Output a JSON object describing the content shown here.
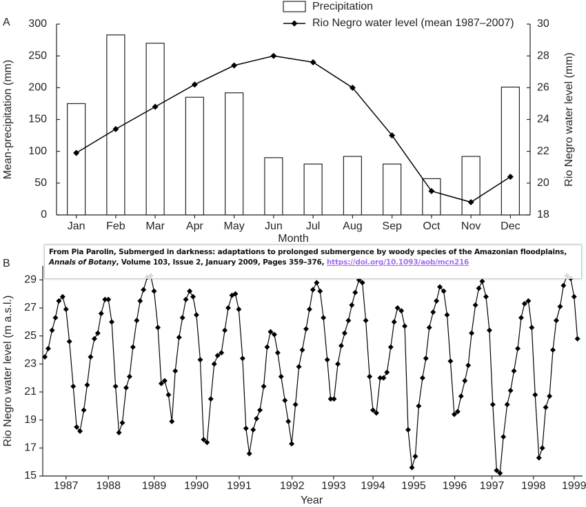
{
  "chart_data": [
    {
      "type": "bar",
      "panel_label": "A",
      "xlabel": "Month",
      "ylabel": "Mean-precipitation (mm)",
      "y2label": "Rio Negro water level (mm)",
      "categories": [
        "Jan",
        "Feb",
        "Mar",
        "Apr",
        "May",
        "Jun",
        "Jul",
        "Aug",
        "Sep",
        "Oct",
        "Nov",
        "Dec"
      ],
      "series": [
        {
          "name": "Precipitation",
          "type": "bar",
          "color": "#ffffff",
          "values": [
            175,
            283,
            270,
            185,
            192,
            90,
            80,
            92,
            80,
            57,
            92,
            201
          ]
        },
        {
          "name": "Rio Negro water level (mean 1987–2007)",
          "type": "line",
          "axis": "y2",
          "color": "#000000",
          "values": [
            21.9,
            23.4,
            24.8,
            26.2,
            27.4,
            28.0,
            27.6,
            26.0,
            23.0,
            19.5,
            18.8,
            20.4
          ]
        }
      ],
      "ylim": [
        0,
        300
      ],
      "yticks": [
        0,
        50,
        100,
        150,
        200,
        250,
        300
      ],
      "y2lim": [
        18,
        30
      ],
      "y2ticks": [
        18,
        20,
        22,
        24,
        26,
        28,
        30
      ]
    },
    {
      "type": "line",
      "panel_label": "B",
      "xlabel": "Year",
      "ylabel": "Rio Negro water level (m a.s.l.)",
      "x": [
        1986.5,
        1986.58,
        1986.67,
        1986.75,
        1986.83,
        1986.92,
        1987,
        1987.08,
        1987.17,
        1987.25,
        1987.33,
        1987.42,
        1987.5,
        1987.58,
        1987.67,
        1987.75,
        1987.83,
        1987.92,
        1988,
        1988.08,
        1988.17,
        1988.25,
        1988.33,
        1988.42,
        1988.5,
        1988.58,
        1988.67,
        1988.75,
        1988.83,
        1988.92,
        1989,
        1989.08,
        1989.17,
        1989.25,
        1989.33,
        1989.42,
        1989.5,
        1989.58,
        1989.67,
        1989.75,
        1989.83,
        1989.92,
        1990,
        1990.08,
        1990.17,
        1990.25,
        1990.33,
        1990.42,
        1990.5,
        1990.58,
        1990.67,
        1990.75,
        1990.83,
        1990.92,
        1991,
        1991.08,
        1991.17,
        1991.25,
        1991.33,
        1991.42,
        1991.5,
        1991.58,
        1991.67,
        1991.75,
        1991.83,
        1991.92,
        1992,
        1992.08,
        1992.17,
        1992.25,
        1992.33,
        1992.42,
        1992.5,
        1992.58,
        1992.67,
        1992.75,
        1992.83,
        1992.92,
        1993,
        1993.08,
        1993.17,
        1993.25,
        1993.33,
        1993.42,
        1993.5,
        1993.58,
        1993.67,
        1993.75,
        1993.83,
        1993.92,
        1994,
        1994.08,
        1994.17,
        1994.25,
        1994.33,
        1994.42,
        1994.5,
        1994.58,
        1994.67,
        1994.75,
        1994.83,
        1994.92,
        1995,
        1995.08,
        1995.17,
        1995.25,
        1995.33,
        1995.42,
        1995.5,
        1995.58,
        1995.67,
        1995.75,
        1995.83,
        1995.92,
        1996,
        1996.08,
        1996.17,
        1996.25,
        1996.33,
        1996.42,
        1996.5,
        1996.58,
        1996.67,
        1996.75,
        1996.83,
        1996.92,
        1997,
        1997.08,
        1997.17,
        1997.25,
        1997.33,
        1997.42,
        1997.5,
        1997.58,
        1997.67,
        1997.75,
        1997.83,
        1997.92,
        1998,
        1998.08,
        1998.17,
        1998.25,
        1998.33,
        1998.42,
        1998.5,
        1998.58,
        1998.67,
        1998.75,
        1998.83,
        1998.92,
        1999,
        1999.08
      ],
      "series": [
        {
          "color": "#000000",
          "values": [
            23.5,
            24.1,
            25.4,
            26.3,
            27.5,
            27.8,
            26.9,
            24.6,
            21.4,
            18.5,
            18.2,
            19.7,
            21.5,
            23.5,
            24.8,
            25.2,
            26.6,
            27.6,
            27.6,
            26.0,
            21.4,
            18.1,
            18.8,
            21.3,
            22.1,
            24.2,
            26.1,
            27.5,
            28.3,
            29.2,
            29.3,
            28.2,
            25.6,
            21.6,
            21.8,
            20.8,
            18.9,
            22.5,
            24.9,
            26.3,
            27.6,
            28.2,
            27.8,
            26.5,
            23.3,
            17.6,
            17.4,
            20.5,
            23.0,
            23.6,
            23.8,
            25.4,
            27.0,
            27.9,
            28.0,
            26.9,
            23.4,
            18.4,
            16.6,
            18.3,
            19.1,
            19.7,
            21.4,
            24.2,
            25.3,
            25.1,
            23.8,
            22.1,
            20.4,
            18.9,
            17.3,
            20.1,
            22.8,
            24.0,
            25.5,
            26.9,
            28.3,
            28.8,
            28.2,
            26.3,
            23.3,
            20.5,
            20.5,
            23.0,
            24.3,
            25.2,
            26.1,
            27.2,
            28.1,
            29.0,
            28.8,
            26.1,
            22.1,
            19.7,
            19.5,
            22.0,
            22.0,
            22.4,
            24.2,
            26.0,
            27.0,
            26.8,
            25.7,
            18.3,
            15.6,
            16.4,
            20.0,
            22.0,
            23.4,
            25.6,
            26.7,
            27.5,
            28.5,
            28.2,
            26.5,
            23.2,
            19.4,
            19.6,
            20.7,
            21.8,
            22.9,
            25.2,
            27.2,
            28.4,
            28.9,
            27.8,
            25.4,
            20.1,
            15.4,
            15.2,
            17.8,
            20.1,
            21.1,
            22.5,
            24.1,
            26.3,
            27.3,
            27.5,
            25.6,
            20.8,
            16.3,
            17.0,
            19.9,
            20.7,
            24.0,
            26.1,
            27.1,
            28.6,
            29.3,
            29.1,
            27.8,
            24.8
          ]
        }
      ],
      "xlim": [
        1986.45,
        1999.2
      ],
      "xticks": [
        1987,
        1988,
        {
          "value": 1989.08,
          "label": "1989"
        },
        {
          "value": 1990.08,
          "label": "1990"
        },
        {
          "value": 1991.09,
          "label": "1991"
        },
        {
          "value": 1992.34,
          "label": "1992"
        },
        {
          "value": 1993.32,
          "label": "1993"
        },
        {
          "value": 1994.25,
          "label": "1994"
        },
        {
          "value": 1995.21,
          "label": "1995"
        },
        {
          "value": 1996.18,
          "label": "1996"
        },
        {
          "value": 1997.06,
          "label": "1997"
        },
        {
          "value": 1998.04,
          "label": "1998"
        },
        1999
      ],
      "ylim": [
        15,
        30
      ],
      "yticks": [
        15,
        17,
        19,
        21,
        23,
        25,
        27,
        29
      ]
    }
  ],
  "attribution": {
    "text_before": "From Pia Parolin, Submerged in darkness: adaptations to prolonged submergence by woody species of the Amazonian floodplains, ",
    "journal": "Annals of Botany",
    "text_after": ", Volume 103, Issue 2, January 2009, Pages 359–376, ",
    "link": "https://doi.org/10.1093/aob/mcn216"
  }
}
